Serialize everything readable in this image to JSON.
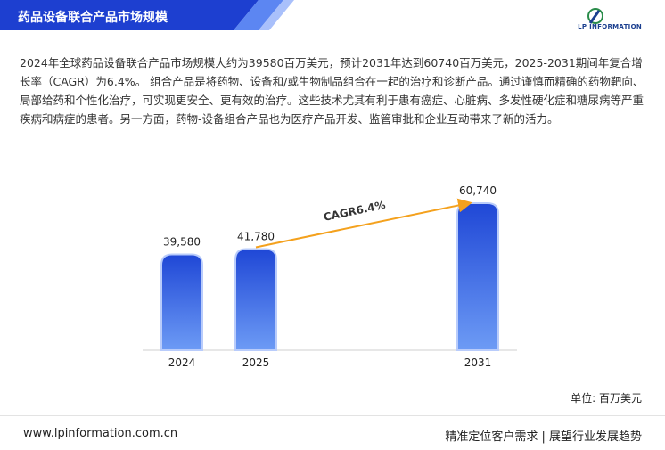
{
  "header": {
    "title": "药品设备联合产品市场规模",
    "logo": "LP INFORMATION"
  },
  "paragraph": "2024年全球药品设备联合产品市场规模大约为39580百万美元，预计2031年达到60740百万美元，2025-2031期间年复合增长率（CAGR）为6.4%。 组合产品是将药物、设备和/或生物制品组合在一起的治疗和诊断产品。通过谨慎而精确的药物靶向、局部给药和个性化治疗，可实现更安全、更有效的治疗。这些技术尤其有利于患有癌症、心脏病、多发性硬化症和糖尿病等严重疾病和病症的患者。另一方面，药物-设备组合产品也为医疗产品开发、监管审批和企业互动带来了新的活力。",
  "chart_data": {
    "type": "bar",
    "categories": [
      "2024",
      "2025",
      "2031"
    ],
    "values": [
      39580,
      41780,
      60740
    ],
    "value_labels": [
      "39,580",
      "41,780",
      "60,740"
    ],
    "annotation": "CAGR6.4%",
    "unit": "单位: 百万美元",
    "color": "#2f5fe0"
  },
  "footer": {
    "website": "www.lpinformation.com.cn",
    "slogan": "精准定位客户需求 | 展望行业发展趋势"
  }
}
